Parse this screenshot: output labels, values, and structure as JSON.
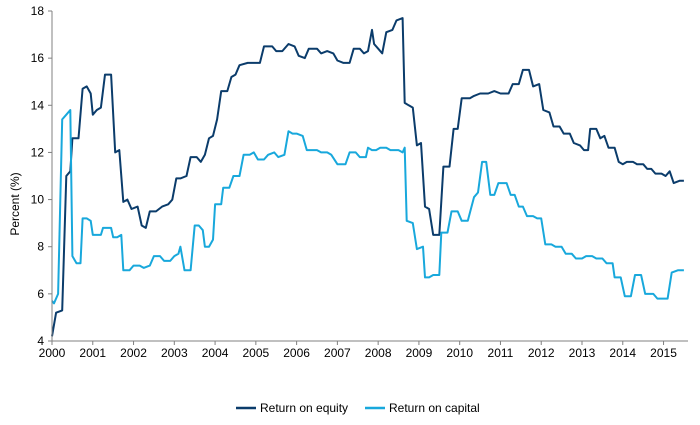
{
  "chart_data": {
    "type": "line",
    "title": "",
    "xlabel": "",
    "ylabel": "Percent (%)",
    "xlim": [
      2000,
      2015.6
    ],
    "ylim": [
      4,
      18
    ],
    "xticks": [
      2000,
      2001,
      2002,
      2003,
      2004,
      2005,
      2006,
      2007,
      2008,
      2009,
      2010,
      2011,
      2012,
      2013,
      2014,
      2015
    ],
    "yticks": [
      4,
      6,
      8,
      10,
      12,
      14,
      16,
      18
    ],
    "grid": false,
    "legend_position": "bottom",
    "series": [
      {
        "name": "Return on equity",
        "color": "#0b3c6b",
        "points": [
          [
            2000.0,
            4.2
          ],
          [
            2000.1,
            5.2
          ],
          [
            2000.25,
            5.3
          ],
          [
            2000.35,
            11.0
          ],
          [
            2000.45,
            11.2
          ],
          [
            2000.5,
            12.6
          ],
          [
            2000.65,
            12.6
          ],
          [
            2000.75,
            14.7
          ],
          [
            2000.85,
            14.8
          ],
          [
            2000.95,
            14.5
          ],
          [
            2001.0,
            13.6
          ],
          [
            2001.1,
            13.8
          ],
          [
            2001.2,
            13.9
          ],
          [
            2001.3,
            15.3
          ],
          [
            2001.45,
            15.3
          ],
          [
            2001.55,
            12.0
          ],
          [
            2001.65,
            12.1
          ],
          [
            2001.75,
            9.9
          ],
          [
            2001.85,
            10.0
          ],
          [
            2001.95,
            9.6
          ],
          [
            2002.1,
            9.7
          ],
          [
            2002.2,
            8.9
          ],
          [
            2002.3,
            8.8
          ],
          [
            2002.4,
            9.5
          ],
          [
            2002.55,
            9.5
          ],
          [
            2002.7,
            9.7
          ],
          [
            2002.85,
            9.8
          ],
          [
            2002.95,
            10.0
          ],
          [
            2003.05,
            10.9
          ],
          [
            2003.15,
            10.9
          ],
          [
            2003.3,
            11.0
          ],
          [
            2003.4,
            11.8
          ],
          [
            2003.55,
            11.8
          ],
          [
            2003.65,
            11.6
          ],
          [
            2003.75,
            11.9
          ],
          [
            2003.85,
            12.6
          ],
          [
            2003.95,
            12.7
          ],
          [
            2004.05,
            13.4
          ],
          [
            2004.15,
            14.6
          ],
          [
            2004.3,
            14.6
          ],
          [
            2004.4,
            15.2
          ],
          [
            2004.5,
            15.3
          ],
          [
            2004.6,
            15.7
          ],
          [
            2004.8,
            15.8
          ],
          [
            2004.95,
            15.8
          ],
          [
            2005.1,
            15.8
          ],
          [
            2005.2,
            16.5
          ],
          [
            2005.4,
            16.5
          ],
          [
            2005.5,
            16.3
          ],
          [
            2005.65,
            16.3
          ],
          [
            2005.8,
            16.6
          ],
          [
            2005.95,
            16.5
          ],
          [
            2006.05,
            16.1
          ],
          [
            2006.2,
            16.0
          ],
          [
            2006.3,
            16.4
          ],
          [
            2006.5,
            16.4
          ],
          [
            2006.6,
            16.2
          ],
          [
            2006.75,
            16.3
          ],
          [
            2006.9,
            16.2
          ],
          [
            2007.0,
            15.9
          ],
          [
            2007.15,
            15.8
          ],
          [
            2007.3,
            15.8
          ],
          [
            2007.4,
            16.4
          ],
          [
            2007.55,
            16.4
          ],
          [
            2007.65,
            16.2
          ],
          [
            2007.75,
            16.3
          ],
          [
            2007.85,
            17.2
          ],
          [
            2007.9,
            16.6
          ],
          [
            2008.0,
            16.4
          ],
          [
            2008.1,
            16.2
          ],
          [
            2008.2,
            17.1
          ],
          [
            2008.35,
            17.2
          ],
          [
            2008.45,
            17.6
          ],
          [
            2008.6,
            17.7
          ],
          [
            2008.65,
            14.1
          ],
          [
            2008.75,
            14.0
          ],
          [
            2008.85,
            13.9
          ],
          [
            2008.95,
            12.3
          ],
          [
            2009.05,
            12.4
          ],
          [
            2009.15,
            9.7
          ],
          [
            2009.25,
            9.6
          ],
          [
            2009.35,
            8.5
          ],
          [
            2009.5,
            8.5
          ],
          [
            2009.6,
            11.4
          ],
          [
            2009.75,
            11.4
          ],
          [
            2009.85,
            13.0
          ],
          [
            2009.95,
            13.0
          ],
          [
            2010.05,
            14.3
          ],
          [
            2010.15,
            14.3
          ],
          [
            2010.25,
            14.3
          ],
          [
            2010.35,
            14.4
          ],
          [
            2010.5,
            14.5
          ],
          [
            2010.7,
            14.5
          ],
          [
            2010.85,
            14.6
          ],
          [
            2011.0,
            14.5
          ],
          [
            2011.2,
            14.5
          ],
          [
            2011.3,
            14.9
          ],
          [
            2011.45,
            14.9
          ],
          [
            2011.55,
            15.5
          ],
          [
            2011.7,
            15.5
          ],
          [
            2011.8,
            14.8
          ],
          [
            2011.95,
            14.9
          ],
          [
            2012.05,
            13.8
          ],
          [
            2012.2,
            13.7
          ],
          [
            2012.3,
            13.1
          ],
          [
            2012.45,
            13.1
          ],
          [
            2012.55,
            12.8
          ],
          [
            2012.7,
            12.8
          ],
          [
            2012.8,
            12.4
          ],
          [
            2012.95,
            12.3
          ],
          [
            2013.05,
            12.1
          ],
          [
            2013.15,
            12.1
          ],
          [
            2013.2,
            13.0
          ],
          [
            2013.35,
            13.0
          ],
          [
            2013.45,
            12.6
          ],
          [
            2013.55,
            12.7
          ],
          [
            2013.65,
            12.2
          ],
          [
            2013.8,
            12.2
          ],
          [
            2013.9,
            11.6
          ],
          [
            2014.0,
            11.5
          ],
          [
            2014.1,
            11.6
          ],
          [
            2014.25,
            11.6
          ],
          [
            2014.35,
            11.5
          ],
          [
            2014.5,
            11.5
          ],
          [
            2014.6,
            11.3
          ],
          [
            2014.7,
            11.3
          ],
          [
            2014.8,
            11.1
          ],
          [
            2014.95,
            11.1
          ],
          [
            2015.05,
            11.0
          ],
          [
            2015.15,
            11.2
          ],
          [
            2015.25,
            10.7
          ],
          [
            2015.4,
            10.8
          ],
          [
            2015.5,
            10.8
          ]
        ]
      },
      {
        "name": "Return on capital",
        "color": "#18a8dc",
        "points": [
          [
            2000.0,
            5.7
          ],
          [
            2000.05,
            5.6
          ],
          [
            2000.15,
            6.0
          ],
          [
            2000.25,
            13.4
          ],
          [
            2000.35,
            13.6
          ],
          [
            2000.45,
            13.8
          ],
          [
            2000.5,
            7.6
          ],
          [
            2000.6,
            7.3
          ],
          [
            2000.7,
            7.3
          ],
          [
            2000.75,
            9.2
          ],
          [
            2000.85,
            9.2
          ],
          [
            2000.95,
            9.1
          ],
          [
            2001.0,
            8.5
          ],
          [
            2001.2,
            8.5
          ],
          [
            2001.25,
            8.8
          ],
          [
            2001.45,
            8.8
          ],
          [
            2001.5,
            8.4
          ],
          [
            2001.6,
            8.4
          ],
          [
            2001.7,
            8.5
          ],
          [
            2001.75,
            7.0
          ],
          [
            2001.9,
            7.0
          ],
          [
            2002.0,
            7.2
          ],
          [
            2002.15,
            7.2
          ],
          [
            2002.25,
            7.1
          ],
          [
            2002.4,
            7.2
          ],
          [
            2002.5,
            7.6
          ],
          [
            2002.65,
            7.6
          ],
          [
            2002.75,
            7.4
          ],
          [
            2002.9,
            7.4
          ],
          [
            2003.0,
            7.6
          ],
          [
            2003.1,
            7.7
          ],
          [
            2003.15,
            8.0
          ],
          [
            2003.25,
            7.0
          ],
          [
            2003.4,
            7.0
          ],
          [
            2003.5,
            8.9
          ],
          [
            2003.6,
            8.9
          ],
          [
            2003.7,
            8.7
          ],
          [
            2003.75,
            8.0
          ],
          [
            2003.85,
            8.0
          ],
          [
            2003.95,
            8.3
          ],
          [
            2004.0,
            9.8
          ],
          [
            2004.15,
            9.8
          ],
          [
            2004.2,
            10.5
          ],
          [
            2004.35,
            10.5
          ],
          [
            2004.45,
            11.0
          ],
          [
            2004.6,
            11.0
          ],
          [
            2004.7,
            11.9
          ],
          [
            2004.85,
            11.9
          ],
          [
            2004.95,
            12.0
          ],
          [
            2005.05,
            11.7
          ],
          [
            2005.2,
            11.7
          ],
          [
            2005.3,
            11.9
          ],
          [
            2005.45,
            12.0
          ],
          [
            2005.55,
            11.8
          ],
          [
            2005.7,
            11.9
          ],
          [
            2005.8,
            12.9
          ],
          [
            2005.9,
            12.8
          ],
          [
            2006.0,
            12.8
          ],
          [
            2006.15,
            12.7
          ],
          [
            2006.25,
            12.1
          ],
          [
            2006.5,
            12.1
          ],
          [
            2006.6,
            12.0
          ],
          [
            2006.75,
            12.0
          ],
          [
            2006.85,
            11.9
          ],
          [
            2007.0,
            11.5
          ],
          [
            2007.2,
            11.5
          ],
          [
            2007.3,
            12.0
          ],
          [
            2007.45,
            12.0
          ],
          [
            2007.55,
            11.8
          ],
          [
            2007.7,
            11.8
          ],
          [
            2007.75,
            12.2
          ],
          [
            2007.85,
            12.1
          ],
          [
            2007.95,
            12.1
          ],
          [
            2008.05,
            12.2
          ],
          [
            2008.2,
            12.2
          ],
          [
            2008.3,
            12.1
          ],
          [
            2008.4,
            12.1
          ],
          [
            2008.5,
            12.1
          ],
          [
            2008.6,
            12.0
          ],
          [
            2008.65,
            12.2
          ],
          [
            2008.7,
            9.1
          ],
          [
            2008.85,
            9.0
          ],
          [
            2008.95,
            7.9
          ],
          [
            2009.1,
            8.0
          ],
          [
            2009.15,
            6.7
          ],
          [
            2009.25,
            6.7
          ],
          [
            2009.35,
            6.8
          ],
          [
            2009.5,
            6.8
          ],
          [
            2009.55,
            8.6
          ],
          [
            2009.7,
            8.6
          ],
          [
            2009.8,
            9.5
          ],
          [
            2009.95,
            9.5
          ],
          [
            2010.05,
            9.1
          ],
          [
            2010.2,
            9.1
          ],
          [
            2010.35,
            10.1
          ],
          [
            2010.45,
            10.3
          ],
          [
            2010.55,
            11.6
          ],
          [
            2010.65,
            11.6
          ],
          [
            2010.75,
            10.2
          ],
          [
            2010.85,
            10.2
          ],
          [
            2010.95,
            10.7
          ],
          [
            2011.05,
            10.7
          ],
          [
            2011.15,
            10.7
          ],
          [
            2011.25,
            10.2
          ],
          [
            2011.35,
            10.2
          ],
          [
            2011.45,
            9.7
          ],
          [
            2011.55,
            9.7
          ],
          [
            2011.65,
            9.3
          ],
          [
            2011.8,
            9.3
          ],
          [
            2011.9,
            9.2
          ],
          [
            2012.0,
            9.2
          ],
          [
            2012.1,
            8.1
          ],
          [
            2012.25,
            8.1
          ],
          [
            2012.35,
            8.0
          ],
          [
            2012.5,
            8.0
          ],
          [
            2012.6,
            7.7
          ],
          [
            2012.75,
            7.7
          ],
          [
            2012.85,
            7.5
          ],
          [
            2013.0,
            7.5
          ],
          [
            2013.1,
            7.6
          ],
          [
            2013.25,
            7.6
          ],
          [
            2013.35,
            7.5
          ],
          [
            2013.5,
            7.5
          ],
          [
            2013.6,
            7.3
          ],
          [
            2013.75,
            7.3
          ],
          [
            2013.8,
            6.7
          ],
          [
            2013.95,
            6.7
          ],
          [
            2014.05,
            5.9
          ],
          [
            2014.2,
            5.9
          ],
          [
            2014.3,
            6.8
          ],
          [
            2014.45,
            6.8
          ],
          [
            2014.55,
            6.0
          ],
          [
            2014.75,
            6.0
          ],
          [
            2014.85,
            5.8
          ],
          [
            2015.0,
            5.8
          ],
          [
            2015.1,
            5.8
          ],
          [
            2015.2,
            6.9
          ],
          [
            2015.35,
            7.0
          ],
          [
            2015.5,
            7.0
          ]
        ]
      }
    ]
  }
}
